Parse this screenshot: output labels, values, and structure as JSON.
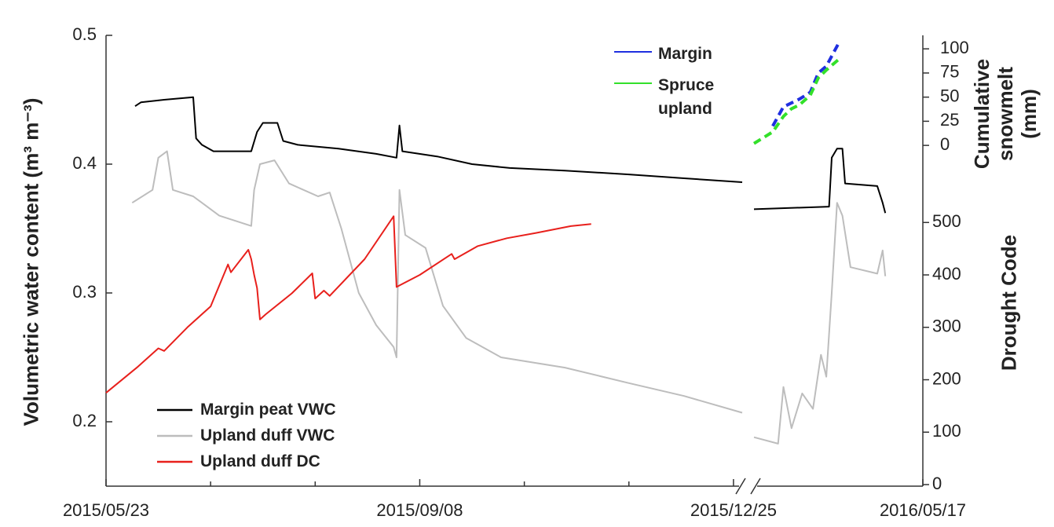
{
  "chart_data": {
    "type": "line",
    "ylabel": "Volumetric water content (m³ m⁻³)",
    "y2label": "Drought Code",
    "y3label": "Cumulative snowmelt (mm)",
    "xlim": [
      "2015/05/23",
      "2016/05/17"
    ],
    "xbreak": [
      "2015/12/28",
      "2016/03/15"
    ],
    "xticks": [
      "2015/05/23",
      "2015/09/08",
      "2015/12/25",
      "2016/05/17"
    ],
    "xminor": [
      "2015/06/28",
      "2015/08/03",
      "2015/10/14",
      "2015/11/19"
    ],
    "ylim": [
      0.15,
      0.5
    ],
    "yticks": [
      0.2,
      0.3,
      0.4,
      0.5
    ],
    "y2lim": [
      -3,
      857
    ],
    "y2ticks": [
      0,
      100,
      200,
      300,
      400,
      500
    ],
    "y3lim": [
      -353,
      114
    ],
    "y3ticks": [
      0,
      25,
      50,
      75,
      100
    ],
    "series": [
      {
        "name": "Margin peat VWC",
        "color": "#000000",
        "axis": "y",
        "x": [
          "2015/06/02",
          "2015/06/04",
          "2015/06/12",
          "2015/06/22",
          "2015/06/23",
          "2015/06/25",
          "2015/06/29",
          "2015/07/12",
          "2015/07/14",
          "2015/07/16",
          "2015/07/21",
          "2015/07/23",
          "2015/07/28",
          "2015/08/11",
          "2015/08/24",
          "2015/08/31",
          "2015/09/01",
          "2015/09/02",
          "2015/09/14",
          "2015/09/26",
          "2015/10/09",
          "2015/10/28",
          "2015/11/19",
          "2015/12/08",
          "2015/12/28",
          "2016/03/15",
          "2016/04/12",
          "2016/04/13",
          "2016/04/15",
          "2016/04/17",
          "2016/04/18",
          "2016/04/30",
          "2016/05/02",
          "2016/05/03"
        ],
        "values": [
          0.445,
          0.448,
          0.45,
          0.452,
          0.42,
          0.415,
          0.41,
          0.41,
          0.425,
          0.432,
          0.432,
          0.418,
          0.415,
          0.412,
          0.408,
          0.405,
          0.43,
          0.41,
          0.406,
          0.4,
          0.397,
          0.395,
          0.392,
          0.389,
          0.386,
          0.365,
          0.367,
          0.405,
          0.412,
          0.412,
          0.385,
          0.383,
          0.37,
          0.362
        ]
      },
      {
        "name": "Upland duff VWC",
        "color": "#bdbdbd",
        "axis": "y",
        "x": [
          "2015/06/01",
          "2015/06/08",
          "2015/06/10",
          "2015/06/13",
          "2015/06/15",
          "2015/06/22",
          "2015/07/01",
          "2015/07/12",
          "2015/07/13",
          "2015/07/15",
          "2015/07/20",
          "2015/07/25",
          "2015/08/04",
          "2015/08/08",
          "2015/08/12",
          "2015/08/18",
          "2015/08/24",
          "2015/08/30",
          "2015/08/31",
          "2015/09/01",
          "2015/09/03",
          "2015/09/10",
          "2015/09/16",
          "2015/09/24",
          "2015/10/06",
          "2015/10/28",
          "2015/11/19",
          "2015/12/08",
          "2015/12/28",
          "2016/03/15",
          "2016/03/24",
          "2016/03/26",
          "2016/03/29",
          "2016/04/02",
          "2016/04/06",
          "2016/04/09",
          "2016/04/11",
          "2016/04/13",
          "2016/04/15",
          "2016/04/17",
          "2016/04/20",
          "2016/04/30",
          "2016/05/02",
          "2016/05/03"
        ],
        "values": [
          0.37,
          0.38,
          0.405,
          0.41,
          0.38,
          0.375,
          0.36,
          0.352,
          0.38,
          0.4,
          0.403,
          0.385,
          0.375,
          0.378,
          0.35,
          0.3,
          0.275,
          0.258,
          0.25,
          0.38,
          0.345,
          0.335,
          0.29,
          0.265,
          0.25,
          0.242,
          0.23,
          0.22,
          0.207,
          0.188,
          0.183,
          0.227,
          0.195,
          0.222,
          0.21,
          0.252,
          0.235,
          0.3,
          0.37,
          0.36,
          0.32,
          0.315,
          0.333,
          0.313
        ]
      },
      {
        "name": "Upland duff DC",
        "color": "#e8201c",
        "axis": "y2",
        "x": [
          "2015/05/23",
          "2015/06/03",
          "2015/06/10",
          "2015/06/12",
          "2015/06/20",
          "2015/06/28",
          "2015/07/04",
          "2015/07/05",
          "2015/07/11",
          "2015/07/12",
          "2015/07/13",
          "2015/07/14",
          "2015/07/15",
          "2015/07/17",
          "2015/07/26",
          "2015/08/02",
          "2015/08/03",
          "2015/08/06",
          "2015/08/08",
          "2015/08/20",
          "2015/08/30",
          "2015/08/31",
          "2015/09/08",
          "2015/09/19",
          "2015/09/20",
          "2015/09/28",
          "2015/10/08",
          "2015/10/18",
          "2015/10/30",
          "2015/11/06"
        ],
        "values": [
          175,
          225,
          260,
          255,
          300,
          340,
          420,
          405,
          448,
          430,
          400,
          375,
          315,
          325,
          365,
          403,
          355,
          370,
          360,
          430,
          512,
          377,
          400,
          440,
          430,
          455,
          470,
          480,
          493,
          497
        ]
      },
      {
        "name": "Margin",
        "color": "#1f2fe0",
        "axis": "y3",
        "dash": true,
        "x": [
          "2016/03/22",
          "2016/03/26",
          "2016/04/01",
          "2016/04/05",
          "2016/04/08",
          "2016/04/11",
          "2016/04/16"
        ],
        "values": [
          20,
          40,
          48,
          55,
          75,
          82,
          108
        ]
      },
      {
        "name": "Spruce upland",
        "color": "#33e02a",
        "axis": "y3",
        "dash": true,
        "x": [
          "2016/03/15",
          "2016/03/22",
          "2016/03/26",
          "2016/03/29",
          "2016/04/01",
          "2016/04/05",
          "2016/04/08",
          "2016/04/11",
          "2016/04/16"
        ],
        "values": [
          2,
          14,
          30,
          38,
          42,
          52,
          70,
          78,
          90
        ]
      }
    ]
  }
}
